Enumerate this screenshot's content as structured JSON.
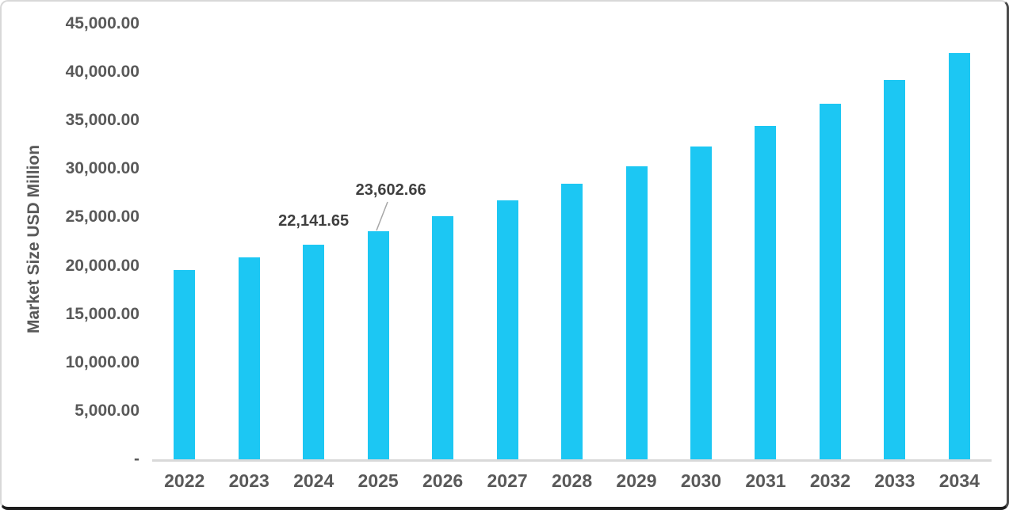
{
  "chart_data": {
    "type": "bar",
    "title": "",
    "xlabel": "",
    "ylabel": "Market Size USD Million",
    "categories": [
      "2022",
      "2023",
      "2024",
      "2025",
      "2026",
      "2027",
      "2028",
      "2029",
      "2030",
      "2031",
      "2032",
      "2033",
      "2034"
    ],
    "values": [
      19550,
      20860,
      22141.65,
      23602.66,
      25160,
      26780,
      28480,
      30280,
      32330,
      34450,
      36740,
      39190,
      41960
    ],
    "labeled_points": {
      "2024": "22,141.65",
      "2025": "23,602.66"
    },
    "ylim": [
      0,
      45000
    ],
    "y_ticks": [
      {
        "value": 45000,
        "label": "45,000.00"
      },
      {
        "value": 40000,
        "label": "40,000.00"
      },
      {
        "value": 35000,
        "label": "35,000.00"
      },
      {
        "value": 30000,
        "label": "30,000.00"
      },
      {
        "value": 25000,
        "label": "25,000.00"
      },
      {
        "value": 20000,
        "label": "20,000.00"
      },
      {
        "value": 15000,
        "label": "15,000.00"
      },
      {
        "value": 10000,
        "label": "10,000.00"
      },
      {
        "value": 5000,
        "label": "5,000.00"
      },
      {
        "value": 0,
        "label": "-"
      }
    ],
    "grid": false,
    "legend": "none",
    "annotations": [
      {
        "category": "2024",
        "text": "22,141.65",
        "leader": false
      },
      {
        "category": "2025",
        "text": "23,602.66",
        "leader": true
      }
    ],
    "colors": {
      "bar": "#1CC7F3",
      "axis_text": "#595959",
      "data_label": "#3F3F3F",
      "axis_line": "#D9D9D9",
      "leader_line": "#A6A6A6"
    }
  }
}
